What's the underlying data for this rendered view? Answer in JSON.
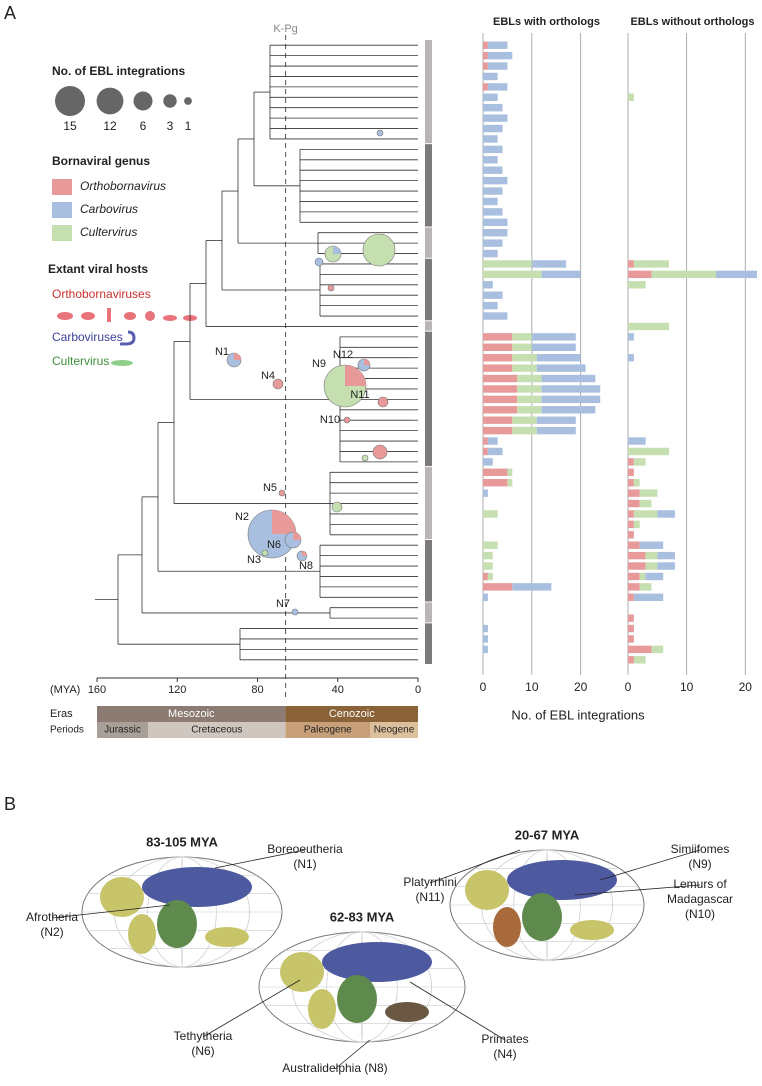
{
  "panel_labels": [
    "A",
    "B"
  ],
  "legend": {
    "size_title": "No. of EBL integrations",
    "sizes": [
      15,
      12,
      6,
      3,
      1
    ],
    "genus_title": "Bornaviral genus",
    "hosts_title": "Extant viral hosts",
    "hosts": [
      "Orthobornaviruses",
      "Carboviruses",
      "Cultervirus"
    ]
  },
  "tree": {
    "kpg": {
      "label": "K-Pg",
      "value": 66
    },
    "axis_label": "(MYA)",
    "xlim": [
      160,
      0
    ],
    "xticks": [
      160,
      120,
      80,
      40,
      0
    ],
    "nodes": [
      "N1",
      "N2",
      "N3",
      "N4",
      "N5",
      "N6",
      "N7",
      "N8",
      "N9",
      "N10",
      "N11",
      "N12"
    ],
    "eras_label": "Eras",
    "eras": [
      "Mesozoic",
      "Cenozoic"
    ],
    "periods_label": "Periods",
    "periods": [
      "Jurassic",
      "Cretaceous",
      "Paleogene",
      "Neogene"
    ]
  },
  "chart_data": [
    {
      "type": "bar",
      "orientation": "horizontal",
      "stacked": true,
      "title": "EBLs with orthologs",
      "x_label": "No. of EBL integrations",
      "xlim": [
        0,
        26
      ],
      "xticks": [
        0,
        10,
        20
      ],
      "grid": true,
      "series": [
        {
          "name": "Orthobornavirus",
          "color": "#e8999a",
          "values": [
            1,
            1,
            1,
            0,
            1,
            0,
            0,
            0,
            0,
            0,
            0,
            0,
            0,
            0,
            0,
            0,
            0,
            0,
            0,
            0,
            0,
            0,
            0,
            0,
            0,
            0,
            0,
            0,
            6,
            6,
            6,
            6,
            7,
            7,
            7,
            7,
            6,
            6,
            1,
            1,
            0,
            5,
            5,
            0,
            0,
            0,
            0,
            0,
            0,
            0,
            0,
            1,
            6,
            0,
            0,
            0,
            0,
            0,
            0,
            0
          ]
        },
        {
          "name": "Cultervirus",
          "color": "#c6dfb1",
          "values": [
            0,
            0,
            0,
            0,
            0,
            0,
            0,
            0,
            0,
            0,
            0,
            0,
            0,
            0,
            0,
            0,
            0,
            0,
            0,
            0,
            0,
            10,
            12,
            0,
            0,
            0,
            0,
            0,
            4,
            4,
            5,
            5,
            5,
            5,
            5,
            5,
            5,
            5,
            0,
            0,
            0,
            1,
            1,
            0,
            0,
            3,
            0,
            0,
            3,
            2,
            2,
            1,
            0,
            0,
            0,
            0,
            0,
            0,
            0,
            0
          ]
        },
        {
          "name": "Carbovirus",
          "color": "#a9bfdf",
          "values": [
            4,
            5,
            4,
            3,
            4,
            3,
            4,
            5,
            4,
            3,
            4,
            3,
            4,
            5,
            4,
            3,
            4,
            5,
            5,
            4,
            3,
            7,
            8,
            2,
            4,
            3,
            5,
            0,
            9,
            9,
            9,
            10,
            11,
            12,
            12,
            11,
            8,
            8,
            2,
            3,
            2,
            0,
            0,
            1,
            0,
            0,
            0,
            0,
            0,
            0,
            0,
            0,
            8,
            1,
            0,
            0,
            1,
            1,
            1,
            0
          ]
        }
      ]
    },
    {
      "type": "bar",
      "orientation": "horizontal",
      "stacked": true,
      "title": "EBLs without orthologs",
      "xlim": [
        0,
        22
      ],
      "xticks": [
        0,
        10,
        20
      ],
      "grid": true,
      "series": [
        {
          "color": "#e8999a",
          "values": [
            0,
            0,
            0,
            0,
            0,
            0,
            0,
            0,
            0,
            0,
            0,
            0,
            0,
            0,
            0,
            0,
            0,
            0,
            0,
            0,
            0,
            1,
            4,
            0,
            0,
            0,
            0,
            0,
            0,
            0,
            0,
            0,
            0,
            0,
            0,
            0,
            0,
            0,
            0,
            0,
            1,
            1,
            1,
            2,
            2,
            1,
            1,
            1,
            2,
            3,
            3,
            2,
            2,
            1,
            0,
            1,
            1,
            1,
            4,
            1
          ]
        },
        {
          "color": "#c6dfb1",
          "values": [
            0,
            0,
            0,
            0,
            0,
            1,
            0,
            0,
            0,
            0,
            0,
            0,
            0,
            0,
            0,
            0,
            0,
            0,
            0,
            0,
            0,
            6,
            11,
            3,
            0,
            0,
            0,
            7,
            0,
            0,
            0,
            0,
            0,
            0,
            0,
            0,
            0,
            0,
            0,
            7,
            2,
            0,
            1,
            3,
            2,
            4,
            1,
            0,
            0,
            2,
            2,
            1,
            2,
            0,
            0,
            0,
            0,
            0,
            2,
            2
          ]
        },
        {
          "color": "#a9bfdf",
          "values": [
            0,
            0,
            0,
            0,
            0,
            0,
            0,
            0,
            0,
            0,
            0,
            0,
            0,
            0,
            0,
            0,
            0,
            0,
            0,
            0,
            0,
            0,
            7,
            0,
            0,
            0,
            0,
            0,
            1,
            0,
            1,
            0,
            0,
            0,
            0,
            0,
            0,
            0,
            3,
            0,
            0,
            0,
            0,
            0,
            0,
            3,
            0,
            0,
            4,
            3,
            3,
            3,
            0,
            5,
            0,
            0,
            0,
            0,
            0,
            0
          ]
        }
      ]
    }
  ],
  "maps": [
    {
      "title": "83-105 MYA",
      "labels": [
        [
          "Boreoeutheria",
          "(N1)"
        ],
        [
          "Afrotheria",
          "(N2)"
        ]
      ]
    },
    {
      "title": "20-67 MYA",
      "labels": [
        [
          "Simiifomes",
          "(N9)"
        ],
        [
          "Platyrrhini",
          "(N11)"
        ],
        [
          "Lemurs of",
          "Madagascar",
          "(N10)"
        ]
      ]
    },
    {
      "title": "62-83 MYA",
      "labels": [
        [
          "Primates",
          "(N4)"
        ],
        [
          "Tethytheria",
          "(N6)"
        ],
        [
          "Australidelphia (N8)"
        ]
      ]
    }
  ]
}
